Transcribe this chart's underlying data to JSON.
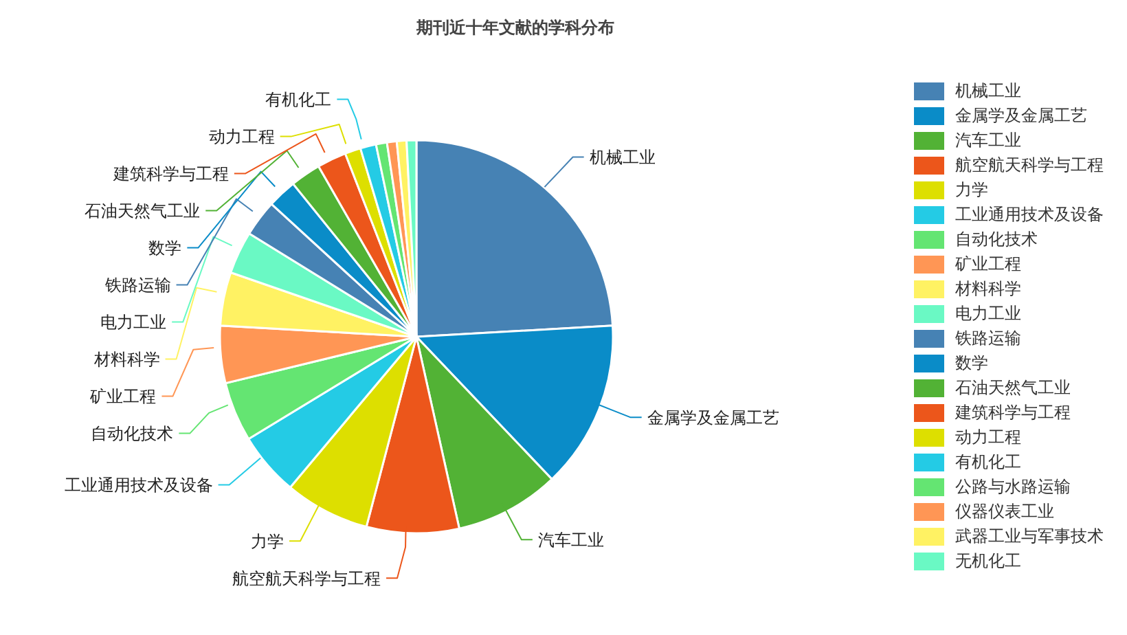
{
  "chart_data": {
    "type": "pie",
    "title": "期刊近十年文献的学科分布",
    "categories": [
      "机械工业",
      "金属学及金属工艺",
      "汽车工业",
      "航空航天科学与工程",
      "力学",
      "工业通用技术及设备",
      "自动化技术",
      "矿业工程",
      "材料科学",
      "电力工业",
      "铁路运输",
      "数学",
      "石油天然气工业",
      "建筑科学与工程",
      "动力工程",
      "有机化工",
      "公路与水路运输",
      "仪器仪表工业",
      "武器工业与军事技术",
      "无机化工"
    ],
    "values": [
      24.1,
      13.8,
      8.6,
      7.6,
      7.0,
      5.2,
      4.9,
      4.7,
      4.4,
      3.5,
      3.0,
      2.4,
      2.5,
      2.4,
      1.3,
      1.3,
      0.9,
      0.8,
      0.8,
      0.8
    ],
    "colors": [
      "#4682b4",
      "#0a8cc8",
      "#52b235",
      "#ec561b",
      "#dddf00",
      "#24cbe5",
      "#64e572",
      "#ff9655",
      "#fff263",
      "#6af9c4",
      "#4682b4",
      "#0a8cc8",
      "#52b235",
      "#ec561b",
      "#dddf00",
      "#24cbe5",
      "#64e572",
      "#ff9655",
      "#fff263",
      "#6af9c4"
    ],
    "legend": "right"
  }
}
